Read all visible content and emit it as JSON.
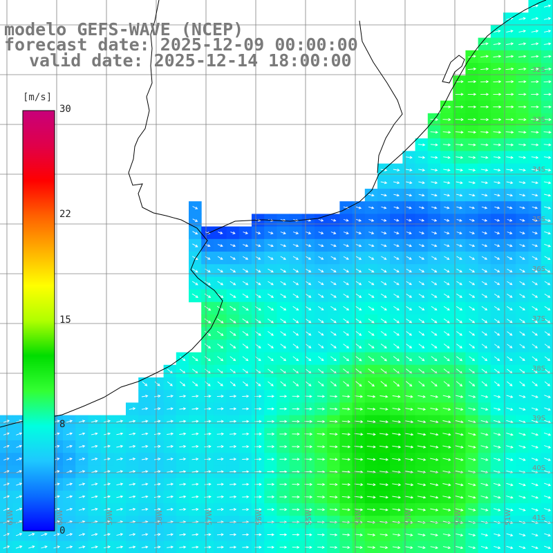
{
  "title": {
    "line1": "modelo GEFS-WAVE (NCEP)",
    "line2": "forecast date: 2025-12-09 00:00:00",
    "line3": "valid date: 2025-12-14 18:00:00"
  },
  "colorbar": {
    "unit": "[m/s]",
    "ticks": [
      {
        "value": 30,
        "label": "30"
      },
      {
        "value": 22,
        "label": "22"
      },
      {
        "value": 15,
        "label": "15"
      },
      {
        "value": 8,
        "label": "8"
      },
      {
        "value": 0,
        "label": "0"
      }
    ],
    "min": 0,
    "max": 30,
    "colors": [
      "#0000ff",
      "#0a6cff",
      "#1ec8ff",
      "#00ffe0",
      "#33ff33",
      "#00dd00",
      "#b0ff00",
      "#ffff00",
      "#ffb000",
      "#ff6000",
      "#ff0000",
      "#e0004a",
      "#c8007a"
    ]
  },
  "lat_labels": [
    "32S",
    "33S",
    "34S",
    "35S",
    "36S",
    "37S",
    "38S",
    "39S",
    "40S",
    "41S"
  ],
  "lon_labels": [
    "61W",
    "60W",
    "59W",
    "58W",
    "57W",
    "56W",
    "55W",
    "54W",
    "53W",
    "52W",
    "51W"
  ],
  "map_colors": {
    "grid": "#808080",
    "coast": "#000000",
    "arrow": "#ffffff",
    "land": "#ffffff"
  }
}
